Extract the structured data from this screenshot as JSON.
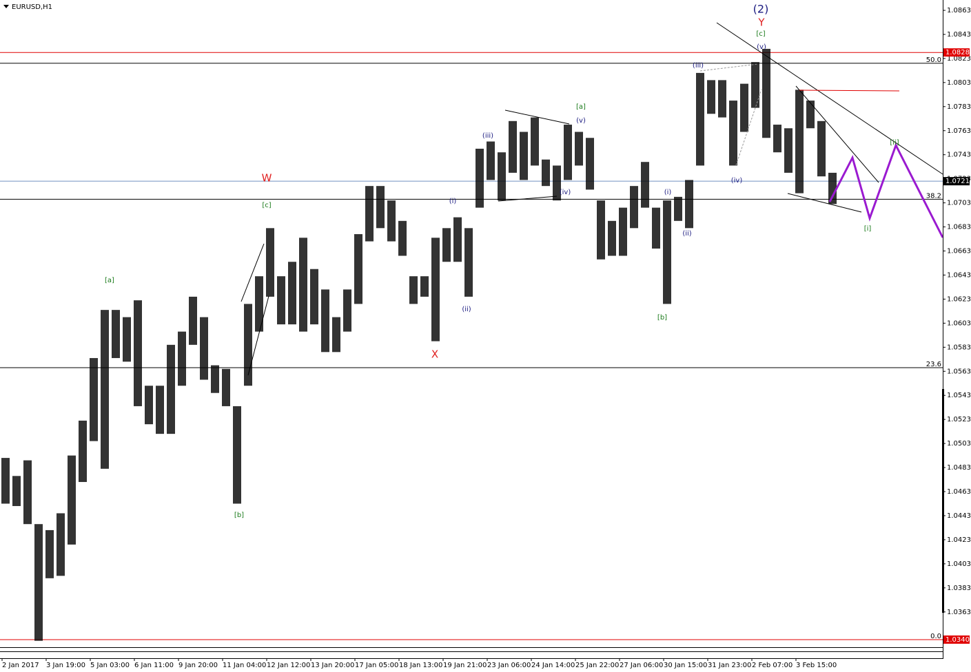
{
  "chart_data": {
    "type": "range-bar",
    "title": "EURUSD,H1",
    "highs": [
      1.0491,
      1.0476,
      1.0489,
      1.0436,
      1.0431,
      1.0445,
      1.0493,
      1.0522,
      1.0574,
      1.0614,
      1.0614,
      1.0608,
      1.0622,
      1.0551,
      1.0551,
      1.0585,
      1.0596,
      1.0625,
      1.0608,
      1.0568,
      1.0565,
      1.0534,
      1.0619,
      1.0642,
      1.0682,
      1.0642,
      1.0654,
      1.0674,
      1.0648,
      1.0631,
      1.0608,
      1.0631,
      1.0677,
      1.0717,
      1.0717,
      1.0705,
      1.0688,
      1.0642,
      1.0642,
      1.0674,
      1.0682,
      1.0691,
      1.0682,
      1.0748,
      1.0754,
      1.0745,
      1.0771,
      1.0762,
      1.0774,
      1.0739,
      1.0734,
      1.0768,
      1.0762,
      1.0757,
      1.0705,
      1.0688,
      1.0699,
      1.0717,
      1.0737,
      1.0699,
      1.0705,
      1.0708,
      1.0722,
      1.0811,
      1.0805,
      1.0805,
      1.0788,
      1.0802,
      1.082,
      1.0831,
      1.0768,
      1.0765,
      1.0797,
      1.0788,
      1.0771,
      1.0728
    ],
    "lows": [
      1.0453,
      1.0451,
      1.0436,
      1.0339,
      1.0391,
      1.0393,
      1.0419,
      1.0471,
      1.0505,
      1.0482,
      1.0574,
      1.0571,
      1.0534,
      1.0519,
      1.0511,
      1.0511,
      1.0551,
      1.0585,
      1.0556,
      1.0545,
      1.0534,
      1.0453,
      1.0551,
      1.0596,
      1.0625,
      1.0602,
      1.0602,
      1.0596,
      1.0602,
      1.0579,
      1.0579,
      1.0596,
      1.0619,
      1.0671,
      1.0682,
      1.0671,
      1.0659,
      1.0619,
      1.0625,
      1.0588,
      1.0654,
      1.0654,
      1.0625,
      1.0699,
      1.0722,
      1.0705,
      1.0728,
      1.0722,
      1.0734,
      1.0717,
      1.0705,
      1.0722,
      1.0734,
      1.0714,
      1.0656,
      1.0659,
      1.0659,
      1.0682,
      1.0699,
      1.0665,
      1.0619,
      1.0688,
      1.0682,
      1.0734,
      1.0777,
      1.0774,
      1.0734,
      1.0762,
      1.0782,
      1.0757,
      1.0745,
      1.0728,
      1.0711,
      1.0765,
      1.0725,
      1.0702
    ],
    "color": "#000000",
    "xlim": [
      0,
      85.5
    ],
    "xticks": [
      {
        "value": 0,
        "label": "2 Jan 2017"
      },
      {
        "value": 4,
        "label": "3 Jan 19:00"
      },
      {
        "value": 8,
        "label": "5 Jan 03:00"
      },
      {
        "value": 12,
        "label": "6 Jan 11:00"
      },
      {
        "value": 16,
        "label": "9 Jan 20:00"
      },
      {
        "value": 20,
        "label": "11 Jan 04:00"
      },
      {
        "value": 24,
        "label": "12 Jan 12:00"
      },
      {
        "value": 28,
        "label": "13 Jan 20:00"
      },
      {
        "value": 32,
        "label": "17 Jan 05:00"
      },
      {
        "value": 36,
        "label": "18 Jan 13:00"
      },
      {
        "value": 40,
        "label": "19 Jan 21:00"
      },
      {
        "value": 44,
        "label": "23 Jan 06:00"
      },
      {
        "value": 48,
        "label": "24 Jan 14:00"
      },
      {
        "value": 52,
        "label": "25 Jan 22:00"
      },
      {
        "value": 56,
        "label": "27 Jan 06:00"
      },
      {
        "value": 60,
        "label": "30 Jan 15:00"
      },
      {
        "value": 64,
        "label": "31 Jan 23:00"
      },
      {
        "value": 68,
        "label": "2 Feb 07:00"
      },
      {
        "value": 72,
        "label": "3 Feb 15:00"
      }
    ],
    "ylim": [
      1.03394,
      1.08716
    ],
    "yticks": [
      1.0863,
      1.0843,
      1.0823,
      1.0803,
      1.0783,
      1.0763,
      1.0743,
      1.0723,
      1.0703,
      1.0683,
      1.0663,
      1.0643,
      1.0623,
      1.0603,
      1.0583,
      1.0563,
      1.0543,
      1.0523,
      1.0503,
      1.0483,
      1.0463,
      1.0443,
      1.0423,
      1.0403,
      1.0383,
      1.0363
    ],
    "price_lines": [
      {
        "value": 1.0828,
        "label": "1.0828",
        "color": "#e00000"
      },
      {
        "value": 1.0721,
        "label": "1.0721",
        "color": "#7090c0"
      },
      {
        "value": 1.034,
        "label": "1.0340",
        "color": "#e00000"
      }
    ],
    "fib_levels": [
      {
        "label": "50.0",
        "price": 1.0819
      },
      {
        "label": "38.2",
        "price": 1.0706
      },
      {
        "label": "23.6",
        "price": 1.0566
      },
      {
        "label": "0.0",
        "price": 1.034
      }
    ],
    "annotations": [
      "(2)",
      "Y",
      "[c]",
      "(v)",
      "(iii)",
      "[a]",
      "(v)",
      "(iii)",
      "(iv)",
      "(i)",
      "(ii)",
      "W",
      "[c]",
      "[a]",
      "[b]",
      "X",
      "[b]",
      "(i)",
      "(ii)",
      "(iv)",
      "[i]",
      "[ii]"
    ]
  }
}
